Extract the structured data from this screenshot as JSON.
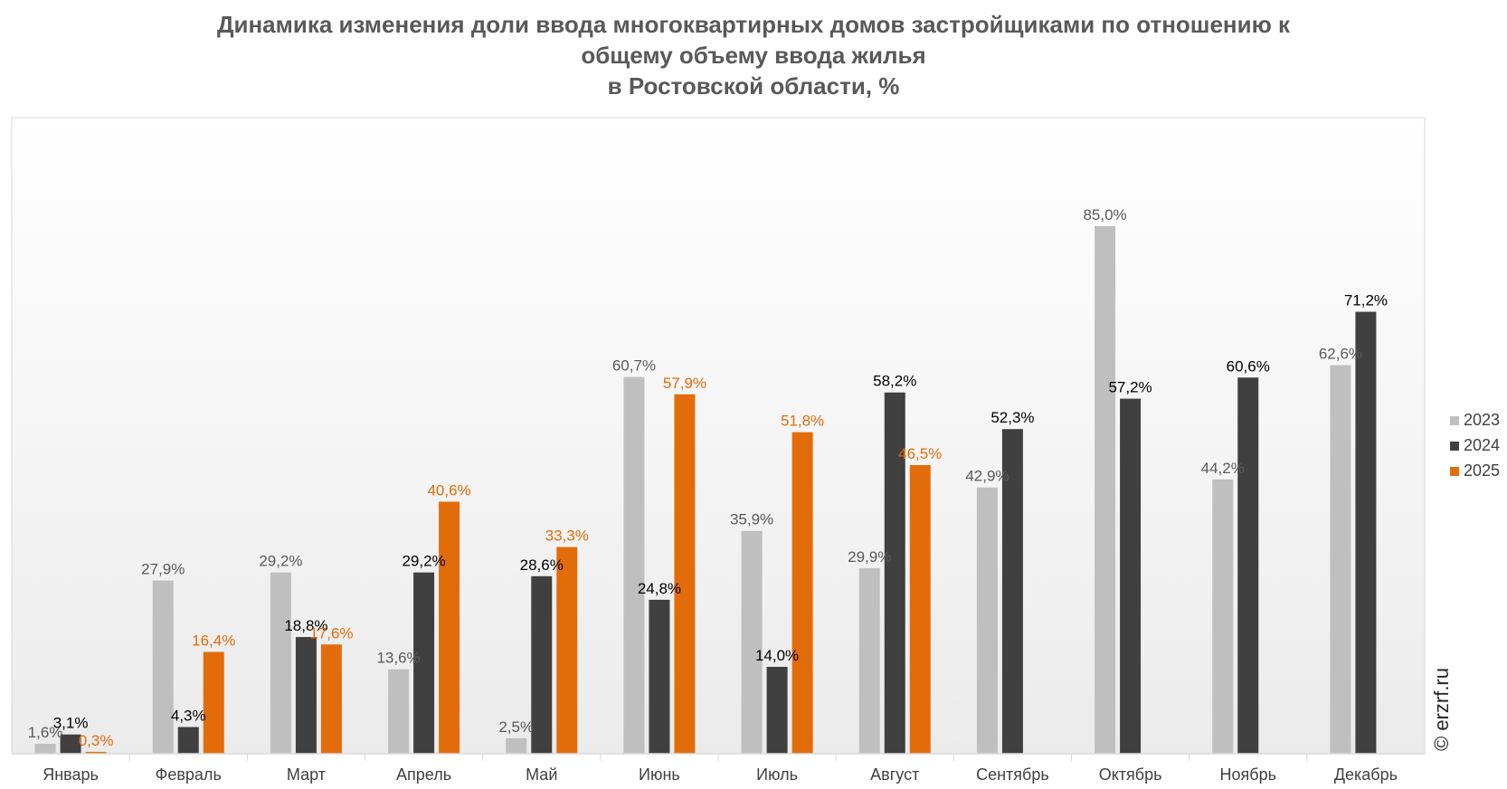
{
  "chart_data": {
    "type": "bar",
    "title_lines": [
      "Динамика изменения доли ввода многоквартирных домов застройщиками по отношению к",
      "общему объему ввода жилья",
      "в Ростовской области, %"
    ],
    "categories": [
      "Январь",
      "Февраль",
      "Март",
      "Апрель",
      "Май",
      "Июнь",
      "Июль",
      "Август",
      "Сентябрь",
      "Октябрь",
      "Ноябрь",
      "Декабрь"
    ],
    "series": [
      {
        "name": "2023",
        "color": "#bfbfbf",
        "values": [
          1.6,
          27.9,
          29.2,
          13.6,
          2.5,
          60.7,
          35.9,
          29.9,
          42.9,
          85.0,
          44.2,
          62.6
        ],
        "labels": [
          "1,6%",
          "27,9%",
          "29,2%",
          "13,6%",
          "2,5%",
          "60,7%",
          "35,9%",
          "29,9%",
          "42,9%",
          "85,0%",
          "44,2%",
          "62,6%"
        ]
      },
      {
        "name": "2024",
        "color": "#404040",
        "values": [
          3.1,
          4.3,
          18.8,
          29.2,
          28.6,
          24.8,
          14.0,
          58.2,
          52.3,
          57.2,
          60.6,
          71.2
        ],
        "labels": [
          "3,1%",
          "4,3%",
          "18,8%",
          "29,2%",
          "28,6%",
          "24,8%",
          "14,0%",
          "58,2%",
          "52,3%",
          "57,2%",
          "60,6%",
          "71,2%"
        ]
      },
      {
        "name": "2025",
        "color": "#e36c0a",
        "values": [
          0.3,
          16.4,
          17.6,
          40.6,
          33.3,
          57.9,
          51.8,
          46.5,
          null,
          null,
          null,
          null
        ],
        "labels": [
          "0,3%",
          "16,4%",
          "17,6%",
          "40,6%",
          "33,3%",
          "57,9%",
          "51,8%",
          "46,5%",
          null,
          null,
          null,
          null
        ]
      }
    ],
    "ylim": [
      0,
      90
    ],
    "legend_position": "right",
    "grid": false
  },
  "watermark": "© erzrf.ru"
}
